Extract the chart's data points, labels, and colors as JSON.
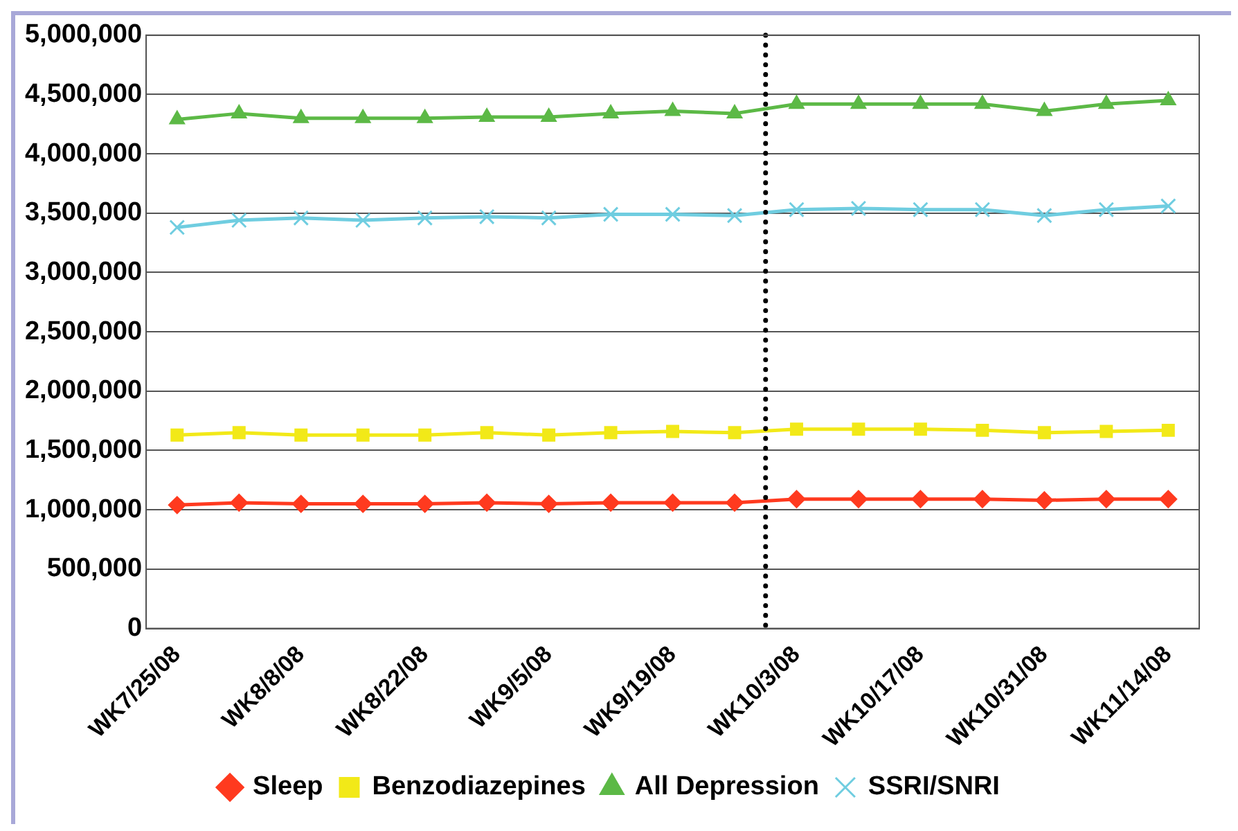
{
  "chart_data": {
    "type": "line",
    "categories": [
      "WK7/25/08",
      null,
      "WK8/8/08",
      null,
      "WK8/22/08",
      null,
      "WK9/5/08",
      null,
      "WK9/19/08",
      null,
      "WK10/3/08",
      null,
      "WK10/17/08",
      null,
      "WK10/31/08",
      null,
      "WK11/14/08"
    ],
    "series": [
      {
        "name": "Sleep",
        "color": "#ff3a1f",
        "marker": "diamond",
        "values": [
          1040000,
          1060000,
          1050000,
          1050000,
          1050000,
          1060000,
          1050000,
          1060000,
          1060000,
          1060000,
          1090000,
          1090000,
          1090000,
          1090000,
          1080000,
          1090000,
          1090000
        ]
      },
      {
        "name": "Benzodiazepines",
        "color": "#f2e918",
        "marker": "square",
        "values": [
          1630000,
          1650000,
          1630000,
          1630000,
          1630000,
          1650000,
          1630000,
          1650000,
          1660000,
          1650000,
          1680000,
          1680000,
          1680000,
          1670000,
          1650000,
          1660000,
          1670000
        ]
      },
      {
        "name": "All Depression",
        "color": "#5cb946",
        "marker": "triangle",
        "values": [
          4290000,
          4340000,
          4300000,
          4300000,
          4300000,
          4310000,
          4310000,
          4340000,
          4360000,
          4340000,
          4420000,
          4420000,
          4420000,
          4420000,
          4360000,
          4420000,
          4450000
        ]
      },
      {
        "name": "SSRI/SNRI",
        "color": "#6fcde0",
        "marker": "cross",
        "values": [
          3380000,
          3440000,
          3460000,
          3440000,
          3460000,
          3470000,
          3460000,
          3490000,
          3490000,
          3480000,
          3530000,
          3540000,
          3530000,
          3530000,
          3480000,
          3530000,
          3560000
        ]
      }
    ],
    "ylim": [
      0,
      5000000
    ],
    "yticks": [
      0,
      {
        "value": 500000,
        "label": "500,000"
      },
      {
        "value": 1000000,
        "label": "1,000,000"
      },
      {
        "value": 1500000,
        "label": "1,500,000"
      },
      {
        "value": 2000000,
        "label": "2,000,000"
      },
      {
        "value": 2500000,
        "label": "2,500,000"
      },
      {
        "value": 3000000,
        "label": "3,000,000"
      },
      {
        "value": 3500000,
        "label": "3,500,000"
      },
      {
        "value": 4000000,
        "label": "4,000,000"
      },
      {
        "value": 4500000,
        "label": "4,500,000"
      },
      {
        "value": 5000000,
        "label": "5,000,000"
      }
    ],
    "grid": "y",
    "legend": "bottom",
    "ref_lines": [
      {
        "axis": "x",
        "value": "WK10/3/08",
        "line_style": "dotted",
        "color": "#000000"
      }
    ]
  }
}
